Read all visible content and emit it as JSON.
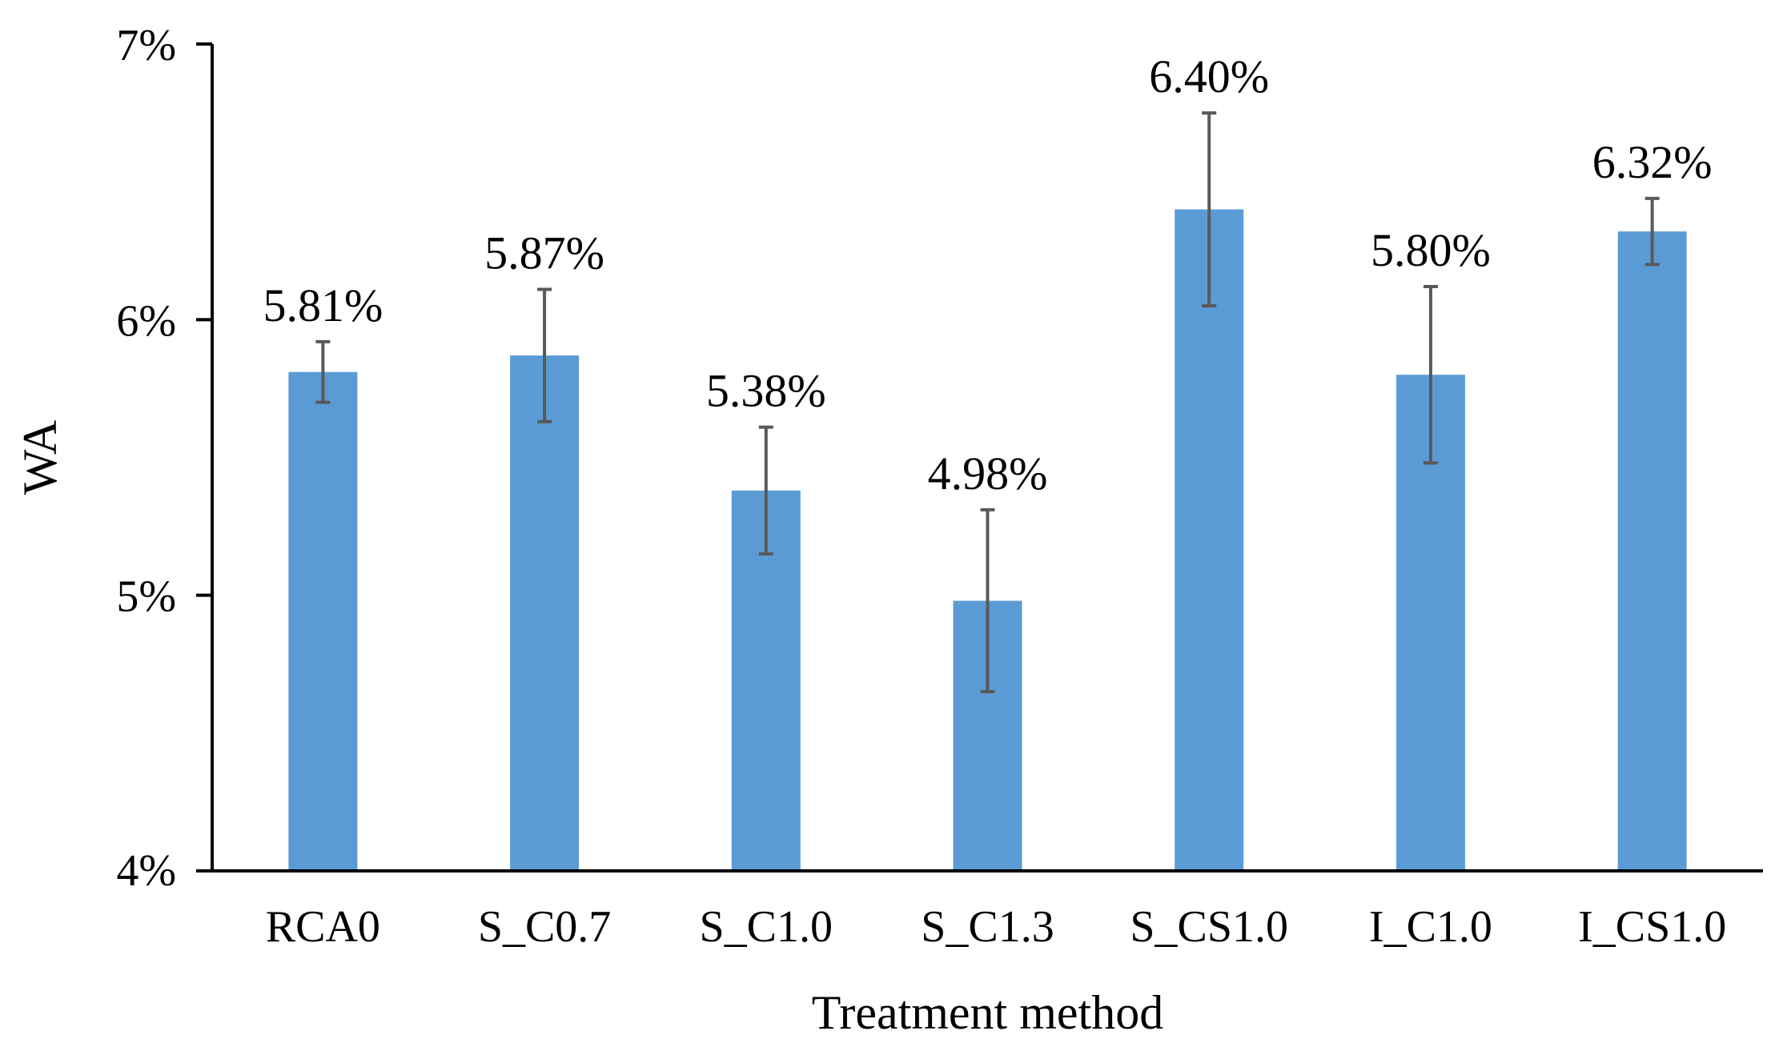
{
  "chart_data": {
    "type": "bar",
    "title": "",
    "xlabel": "Treatment method",
    "ylabel": "WA",
    "ylim": [
      4,
      7
    ],
    "yticks": [
      4,
      5,
      6,
      7
    ],
    "ytick_labels": [
      "4%",
      "5%",
      "6%",
      "7%"
    ],
    "categories": [
      "RCA0",
      "S_C0.7",
      "S_C1.0",
      "S_C1.3",
      "S_CS1.0",
      "I_C1.0",
      "I_CS1.0"
    ],
    "values": [
      5.81,
      5.87,
      5.38,
      4.98,
      6.4,
      5.8,
      6.32
    ],
    "value_labels": [
      "5.81%",
      "5.87%",
      "5.38%",
      "4.98%",
      "6.40%",
      "5.80%",
      "6.32%"
    ],
    "errors": [
      0.11,
      0.24,
      0.23,
      0.33,
      0.35,
      0.32,
      0.12
    ],
    "grid": false,
    "legend": "none",
    "bar_color": "#5b9bd5",
    "error_bar_color": "#595959",
    "axis_color": "#000000"
  }
}
